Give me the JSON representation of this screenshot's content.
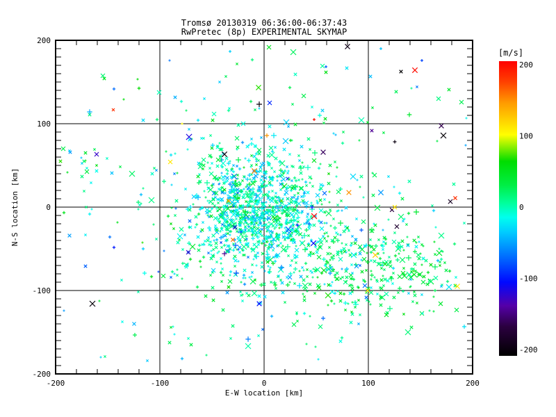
{
  "figure": {
    "background": "#ffffff",
    "axis_color": "#000000"
  },
  "chart_data": {
    "type": "scatter",
    "title": "Tromsø 20130319 06:36:00-06:37:43",
    "subtitle": "RwPretec (8p) EXPERIMENTAL SKYMAP",
    "xlabel": "E-W location [km]",
    "ylabel": "N-S location [km]",
    "xlim": [
      -200,
      200
    ],
    "ylim": [
      -200,
      200
    ],
    "x_major_ticks": [
      -200,
      -100,
      0,
      100,
      200
    ],
    "y_major_ticks": [
      -200,
      -100,
      0,
      100,
      200
    ],
    "x_tick_labels": [
      "-200",
      "-100",
      "0",
      "100",
      "200"
    ],
    "y_tick_labels": [
      "-200",
      "-100",
      "0",
      "100",
      "200"
    ],
    "x_minor_step": 20,
    "y_minor_step": 10,
    "grid": true,
    "marker": "x",
    "colorbar": {
      "label": "[m/s]",
      "min": -200,
      "max": 200,
      "ticks": [
        200,
        100,
        0,
        -100,
        -200
      ],
      "tick_labels": [
        "200",
        "100",
        "0",
        "-100",
        "-200"
      ]
    },
    "colormap_stops": [
      [
        0.0,
        "#000000"
      ],
      [
        0.1,
        "#2B0040"
      ],
      [
        0.17,
        "#5500A8"
      ],
      [
        0.25,
        "#0008FF"
      ],
      [
        0.33,
        "#0066FF"
      ],
      [
        0.42,
        "#00CCFF"
      ],
      [
        0.47,
        "#00FFEE"
      ],
      [
        0.52,
        "#00FF99"
      ],
      [
        0.58,
        "#00EE44"
      ],
      [
        0.66,
        "#00DD00"
      ],
      [
        0.75,
        "#FFFF00"
      ],
      [
        0.86,
        "#FF9900"
      ],
      [
        0.93,
        "#FF4000"
      ],
      [
        1.0,
        "#FF0000"
      ]
    ],
    "seed": 7,
    "point_clusters": [
      {
        "label": "main-echo-cluster-cyan",
        "n": 780,
        "cx": -8,
        "cy": -2,
        "sx": 30,
        "sy": 36,
        "v_mean": -15,
        "v_sd": 22
      },
      {
        "label": "main-echo-cluster-green",
        "n": 300,
        "cx": 2,
        "cy": -18,
        "sx": 42,
        "sy": 46,
        "v_mean": 24,
        "v_sd": 15
      },
      {
        "label": "southeast-cluster-green",
        "n": 260,
        "cx": 108,
        "cy": -72,
        "sx": 38,
        "sy": 28,
        "v_mean": 28,
        "v_sd": 16
      },
      {
        "label": "southeast-cluster-cyan",
        "n": 70,
        "cx": 95,
        "cy": -60,
        "sx": 42,
        "sy": 32,
        "v_mean": -25,
        "v_sd": 14
      },
      {
        "label": "diffuse-halo",
        "n": 190,
        "cx": -5,
        "cy": -15,
        "sx": 85,
        "sy": 78,
        "v_mean": 3,
        "v_sd": 30
      },
      {
        "label": "west-group",
        "n": 15,
        "cx": -166,
        "cy": 50,
        "sx": 15,
        "sy": 11,
        "v_mean": 0,
        "v_sd": 55
      }
    ],
    "background_points": {
      "n": 85,
      "xmin": -196,
      "xmax": 196,
      "ymin": -185,
      "ymax": 196,
      "vmin": -70,
      "vmax": 70
    },
    "extreme_points": {
      "n": 48,
      "vmin": -200,
      "vmax": 200
    },
    "highlight_points": [
      {
        "x": -165,
        "y": -116,
        "v": -195,
        "s": 4,
        "m": "x"
      },
      {
        "x": 172,
        "y": 86,
        "v": -195,
        "s": 4,
        "m": "x"
      },
      {
        "x": 28,
        "y": 186,
        "v": 25,
        "s": 4,
        "m": "x"
      },
      {
        "x": -33,
        "y": 187,
        "v": -30,
        "s": 2,
        "m": "+"
      },
      {
        "x": 112,
        "y": 190,
        "v": -35,
        "s": 2,
        "m": "+"
      },
      {
        "x": 151,
        "y": 176,
        "v": -80,
        "s": 2,
        "m": "+"
      },
      {
        "x": 59,
        "y": 168,
        "v": -70,
        "s": 2,
        "m": "+"
      },
      {
        "x": 38,
        "y": 133,
        "v": 30,
        "s": 3,
        "m": "x"
      },
      {
        "x": 5,
        "y": 125,
        "v": -90,
        "s": 3,
        "m": "x"
      },
      {
        "x": 48,
        "y": 105,
        "v": 195,
        "s": 2,
        "m": "+"
      },
      {
        "x": 125,
        "y": 78,
        "v": -190,
        "s": 2.5,
        "m": "+"
      },
      {
        "x": 127,
        "y": -23,
        "v": -170,
        "s": 3,
        "m": "x"
      },
      {
        "x": 185,
        "y": -95,
        "v": 110,
        "s": 3.5,
        "m": "x"
      },
      {
        "x": 99,
        "y": -100,
        "v": 110,
        "s": 3,
        "m": "x"
      },
      {
        "x": -193,
        "y": 70,
        "v": 30,
        "s": 3,
        "m": "x"
      },
      {
        "x": -161,
        "y": 63,
        "v": -120,
        "s": 3,
        "m": "x"
      },
      {
        "x": -90,
        "y": 54,
        "v": 110,
        "s": 3,
        "m": "x"
      },
      {
        "x": -145,
        "y": 117,
        "v": 180,
        "s": 2,
        "m": "x"
      },
      {
        "x": -125,
        "y": -140,
        "v": -40,
        "s": 2.5,
        "m": "x"
      }
    ]
  }
}
